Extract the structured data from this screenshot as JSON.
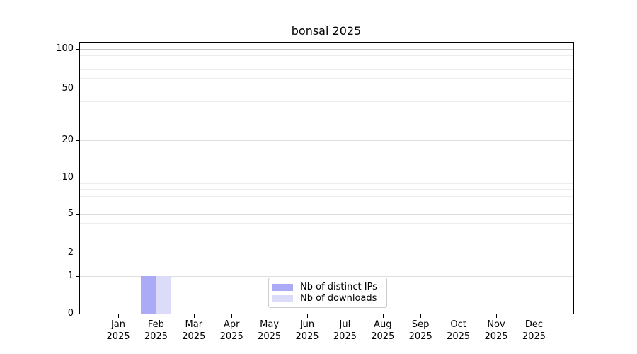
{
  "chart_data": {
    "type": "bar",
    "title": "bonsai 2025",
    "categories": [
      "Jan 2025",
      "Feb 2025",
      "Mar 2025",
      "Apr 2025",
      "May 2025",
      "Jun 2025",
      "Jul 2025",
      "Aug 2025",
      "Sep 2025",
      "Oct 2025",
      "Nov 2025",
      "Dec 2025"
    ],
    "series": [
      {
        "name": "Nb of distinct IPs",
        "color": "#aaaaf6",
        "values": [
          0,
          1,
          0,
          0,
          0,
          0,
          0,
          0,
          0,
          0,
          0,
          0
        ]
      },
      {
        "name": "Nb of downloads",
        "color": "#dcdcf8",
        "values": [
          0,
          1,
          0,
          0,
          0,
          0,
          0,
          0,
          0,
          0,
          0,
          0
        ]
      }
    ],
    "xlabel": "",
    "ylabel": "",
    "y_scale": "symlog",
    "y_ticks_major": [
      0,
      1,
      2,
      5,
      10,
      20,
      50,
      100
    ],
    "y_ticks_minor": [
      3,
      4,
      6,
      7,
      8,
      9,
      30,
      40,
      60,
      70,
      80,
      90
    ],
    "ylim": [
      0,
      110
    ],
    "grid": "horizontal",
    "legend_position": "lower center",
    "background_color": "#ffffff",
    "axis_color": "#000000",
    "gridline_color_major": "#dedede",
    "gridline_color_minor": "#ececec",
    "gridline_color_top": "#c4c4c4"
  }
}
